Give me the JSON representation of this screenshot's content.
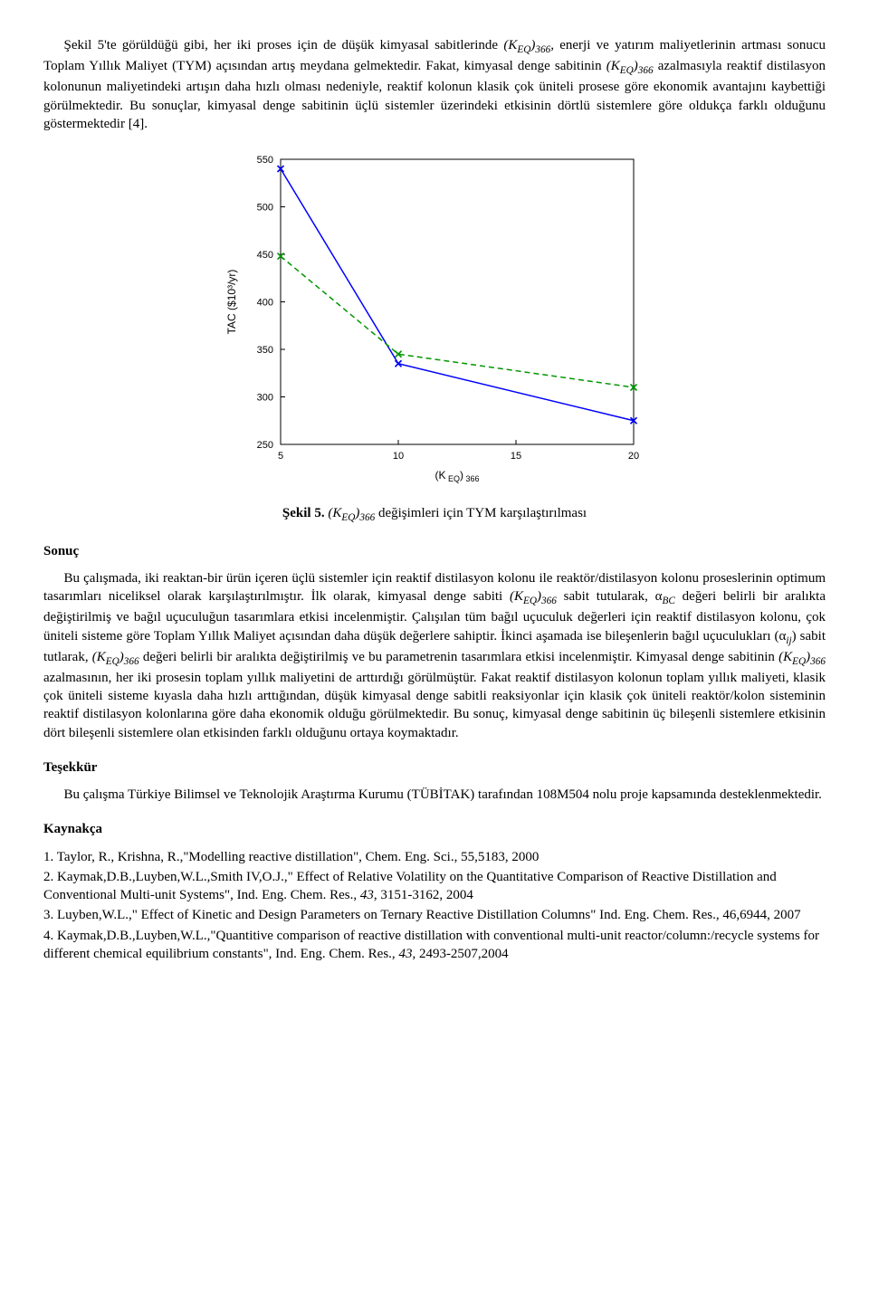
{
  "intro_paragraph": "Şekil 5'te görüldüğü gibi, her iki proses için de düşük kimyasal sabitlerinde (K_EQ)_366, enerji ve yatırım maliyetlerinin artması sonucu Toplam Yıllık Maliyet (TYM) açısından artış meydana gelmektedir. Fakat, kimyasal denge sabitinin (K_EQ)_366 azalmasıyla reaktif distilasyon kolonunun maliyetindeki artışın daha hızlı olması nedeniyle, reaktif kolonun klasik çok üniteli prosese göre ekonomik avantajını kaybettiği görülmektedir. Bu sonuçlar, kimyasal denge sabitinin üçlü sistemler üzerindeki etkisinin dörtlü sistemlere göre oldukça farklı olduğunu göstermektedir [4].",
  "chart": {
    "type": "line",
    "xlim": [
      5,
      20
    ],
    "ylim": [
      250,
      550
    ],
    "xticks": [
      5,
      10,
      15,
      20
    ],
    "yticks": [
      250,
      300,
      350,
      400,
      450,
      500,
      550
    ],
    "xlabel": "(K EQ) 366",
    "ylabel": "TAC ($10³/yr)",
    "background_color": "#ffffff",
    "box_color": "#000000",
    "tick_fontsize": 11,
    "label_fontsize": 12,
    "series": [
      {
        "name": "blue-solid",
        "color": "#0000ff",
        "dash": "none",
        "linewidth": 1.5,
        "marker": "x",
        "marker_size": 7,
        "x": [
          5,
          10,
          20
        ],
        "y": [
          540,
          335,
          275
        ]
      },
      {
        "name": "green-dashed",
        "color": "#009600",
        "dash": "6,4",
        "linewidth": 1.5,
        "marker": "x",
        "marker_size": 7,
        "x": [
          5,
          10,
          20
        ],
        "y": [
          448,
          345,
          310
        ]
      }
    ]
  },
  "caption": {
    "label": "Şekil 5.",
    "text": "(K_EQ)_366 değişimleri için TYM karşılaştırılması"
  },
  "sections": {
    "sonuc": {
      "title": "Sonuç",
      "body": "Bu çalışmada, iki reaktan-bir ürün içeren üçlü sistemler için reaktif distilasyon kolonu ile reaktör/distilasyon kolonu proseslerinin optimum tasarımları niceliksel olarak karşılaştırılmıştır. İlk olarak, kimyasal denge sabiti (K_EQ)_366 sabit tutularak, α_BC değeri belirli bir aralıkta değiştirilmiş ve bağıl uçuculuğun tasarımlara etkisi incelenmiştir. Çalışılan tüm bağıl uçuculuk değerleri için reaktif distilasyon kolonu, çok üniteli sisteme göre Toplam Yıllık Maliyet açısından daha düşük değerlere sahiptir. İkinci aşamada ise bileşenlerin bağıl uçuculukları (α_ij) sabit tutlarak, (K_EQ)_366 değeri belirli bir aralıkta değiştirilmiş ve bu parametrenin tasarımlara etkisi incelenmiştir. Kimyasal denge sabitinin (K_EQ)_366 azalmasının, her iki prosesin toplam yıllık maliyetini de arttırdığı görülmüştür. Fakat reaktif distilasyon kolonun toplam yıllık maliyeti, klasik çok üniteli sisteme kıyasla daha hızlı arttığından, düşük kimyasal denge sabitli reaksiyonlar için klasik çok üniteli reaktör/kolon sisteminin reaktif distilasyon kolonlarına göre daha ekonomik olduğu görülmektedir. Bu sonuç, kimyasal denge sabitinin üç bileşenli sistemlere etkisinin dört bileşenli sistemlere olan etkisinden farklı olduğunu ortaya koymaktadır."
    },
    "tesekkur": {
      "title": "Teşekkür",
      "body": "Bu çalışma Türkiye Bilimsel ve Teknolojik Araştırma Kurumu (TÜBİTAK) tarafından 108M504 nolu proje kapsamında desteklenmektedir."
    },
    "kaynakca": {
      "title": "Kaynakça",
      "items": [
        "1. Taylor, R., Krishna, R.,\"Modelling reactive distillation\", Chem. Eng. Sci., 55,5183, 2000",
        "2. Kaymak,D.B.,Luyben,W.L.,Smith IV,O.J.,\" Effect of Relative Volatility on the Quantitative Comparison of Reactive Distillation and Conventional Multi-unit Systems\", Ind. Eng. Chem. Res., 43, 3151-3162, 2004",
        "3. Luyben,W.L.,\" Effect of Kinetic and Design Parameters on Ternary Reactive Distillation Columns\" Ind. Eng. Chem. Res., 46,6944, 2007",
        "4. Kaymak,D.B.,Luyben,W.L.,\"Quantitive comparison of reactive distillation with conventional multi-unit reactor/column:/recycle systems for different chemical equilibrium constants\", Ind. Eng. Chem. Res., 43, 2493-2507,2004"
      ],
      "italic_tokens": [
        "43",
        "43"
      ]
    }
  }
}
